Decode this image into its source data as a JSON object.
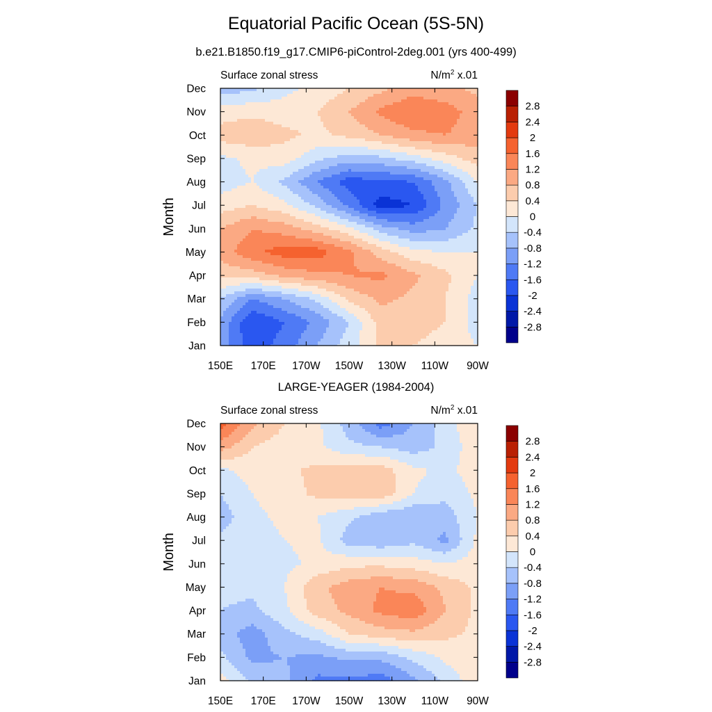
{
  "title": "Equatorial Pacific Ocean (5S-5N)",
  "subtitle": "b.e21.B1850.f19_g17.CMIP6-piControl-2deg.001 (yrs 400-499)",
  "palette": {
    "levels": [
      -3.2,
      -2.8,
      -2.4,
      -2.0,
      -1.6,
      -1.2,
      -0.8,
      -0.4,
      0,
      0.4,
      0.8,
      1.2,
      1.6,
      2.0,
      2.4,
      2.8,
      3.2
    ],
    "colors": [
      "#00008b",
      "#0018a8",
      "#0a33d6",
      "#2a57f0",
      "#4f7af5",
      "#7b9ff7",
      "#a6c2fb",
      "#d3e5fb",
      "#fde8d6",
      "#fcccad",
      "#fba983",
      "#fa8658",
      "#f5622f",
      "#e33a0f",
      "#b92003",
      "#8b0000"
    ],
    "labels": [
      "-2.8",
      "-2.4",
      "-2",
      "-1.6",
      "-1.2",
      "-0.8",
      "-0.4",
      "0",
      "0.4",
      "0.8",
      "1.2",
      "1.6",
      "2",
      "2.4",
      "2.8"
    ]
  },
  "chart_data": [
    {
      "type": "heatmap",
      "title": "",
      "left_label": "Surface zonal stress",
      "right_label": "N/m",
      "right_label_sup": "2",
      "right_label_suffix": " x.01",
      "ylabel": "Month",
      "xlabel": "",
      "x_ticks": [
        "150E",
        "170E",
        "170W",
        "150W",
        "130W",
        "110W",
        "90W"
      ],
      "y_ticks": [
        "Jan",
        "Feb",
        "Mar",
        "Apr",
        "May",
        "Jun",
        "Jul",
        "Aug",
        "Sep",
        "Oct",
        "Nov",
        "Dec"
      ],
      "x_range_deg_east": [
        150,
        270
      ],
      "y_range_months": [
        1,
        12
      ],
      "grid": "off",
      "colorbar": "right",
      "x": [
        150,
        165,
        180,
        195,
        210,
        225,
        240,
        255,
        270
      ],
      "y": [
        "Jan",
        "Feb",
        "Mar",
        "Apr",
        "May",
        "Jun",
        "Jul",
        "Aug",
        "Sep",
        "Oct",
        "Nov",
        "Dec"
      ],
      "z": [
        [
          -1.0,
          -1.9,
          -1.4,
          -0.8,
          -0.2,
          0.5,
          0.4,
          0.2,
          0.0
        ],
        [
          -0.9,
          -2.0,
          -1.6,
          -1.1,
          -0.4,
          0.6,
          0.6,
          0.4,
          -0.2
        ],
        [
          -0.4,
          -1.2,
          -0.8,
          -0.3,
          0.5,
          0.9,
          0.7,
          0.4,
          -0.2
        ],
        [
          0.5,
          0.6,
          0.9,
          1.1,
          1.2,
          1.3,
          0.9,
          0.5,
          0.0
        ],
        [
          1.0,
          1.5,
          1.8,
          1.8,
          1.3,
          0.6,
          0.1,
          0.0,
          0.0
        ],
        [
          0.8,
          1.2,
          1.0,
          0.6,
          0.1,
          -0.6,
          -1.0,
          -0.8,
          -0.3
        ],
        [
          0.2,
          0.4,
          0.1,
          -0.5,
          -1.3,
          -2.2,
          -2.0,
          -1.1,
          -0.4
        ],
        [
          -0.2,
          0.0,
          -0.5,
          -1.2,
          -1.8,
          -1.7,
          -1.6,
          -0.9,
          0.0
        ],
        [
          -0.1,
          0.1,
          0.2,
          -0.3,
          -0.6,
          -0.5,
          -0.2,
          0.2,
          0.6
        ],
        [
          0.6,
          0.7,
          0.5,
          0.3,
          0.5,
          0.8,
          1.1,
          1.2,
          1.0
        ],
        [
          0.2,
          0.3,
          0.2,
          0.4,
          0.8,
          1.3,
          1.6,
          1.4,
          1.0
        ],
        [
          -0.6,
          -0.5,
          -0.1,
          0.1,
          0.4,
          0.7,
          1.0,
          0.9,
          0.7
        ]
      ]
    },
    {
      "type": "heatmap",
      "title": "LARGE-YEAGER (1984-2004)",
      "left_label": "Surface zonal stress",
      "right_label": "N/m",
      "right_label_sup": "2",
      "right_label_suffix": " x.01",
      "ylabel": "Month",
      "xlabel": "",
      "x_ticks": [
        "150E",
        "170E",
        "170W",
        "150W",
        "130W",
        "110W",
        "90W"
      ],
      "y_ticks": [
        "Jan",
        "Feb",
        "Mar",
        "Apr",
        "May",
        "Jun",
        "Jul",
        "Aug",
        "Sep",
        "Oct",
        "Nov",
        "Dec"
      ],
      "x_range_deg_east": [
        150,
        270
      ],
      "y_range_months": [
        1,
        12
      ],
      "grid": "off",
      "colorbar": "right",
      "x": [
        150,
        165,
        180,
        195,
        210,
        225,
        240,
        255,
        270
      ],
      "y": [
        "Jan",
        "Feb",
        "Mar",
        "Apr",
        "May",
        "Jun",
        "Jul",
        "Aug",
        "Sep",
        "Oct",
        "Nov",
        "Dec"
      ],
      "z": [
        [
          0.2,
          -0.5,
          -0.7,
          -1.3,
          -1.3,
          -1.4,
          -0.9,
          -0.3,
          0.3
        ],
        [
          -0.3,
          -0.9,
          -0.8,
          -0.9,
          -0.7,
          -0.7,
          -0.3,
          0.1,
          0.3
        ],
        [
          -0.6,
          -1.0,
          -0.5,
          -0.2,
          0.4,
          0.6,
          0.7,
          0.5,
          0.3
        ],
        [
          -0.4,
          -0.5,
          -0.1,
          0.6,
          0.9,
          1.3,
          1.5,
          0.8,
          0.3
        ],
        [
          -0.3,
          -0.3,
          0.0,
          0.7,
          1.0,
          1.2,
          1.1,
          0.7,
          0.3
        ],
        [
          -0.2,
          -0.2,
          -0.1,
          0.1,
          0.3,
          0.3,
          0.2,
          0.0,
          0.2
        ],
        [
          -0.3,
          -0.2,
          0.0,
          0.1,
          -0.6,
          -0.7,
          -0.5,
          -0.9,
          0.1
        ],
        [
          -0.6,
          -0.1,
          0.1,
          0.0,
          -0.3,
          -0.7,
          -0.8,
          -0.6,
          0.0
        ],
        [
          -0.4,
          0.0,
          0.2,
          0.5,
          0.6,
          0.7,
          0.0,
          -0.3,
          0.1
        ],
        [
          -0.1,
          0.2,
          0.3,
          0.5,
          0.6,
          0.6,
          0.1,
          -0.1,
          0.2
        ],
        [
          1.0,
          0.4,
          0.2,
          0.1,
          -0.3,
          -0.4,
          -0.6,
          -0.3,
          0.3
        ],
        [
          1.8,
          0.9,
          0.4,
          0.1,
          -0.6,
          -1.4,
          -0.8,
          -0.2,
          0.4
        ]
      ]
    }
  ]
}
